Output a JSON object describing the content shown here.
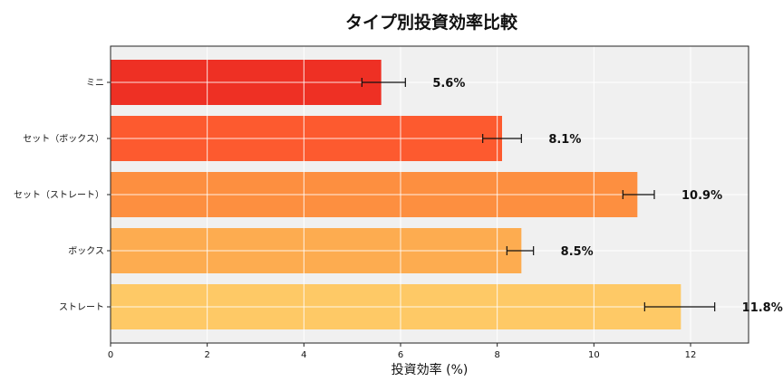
{
  "chart_data": {
    "type": "bar",
    "orientation": "horizontal",
    "title": "タイプ別投資効率比較",
    "xlabel": "投資効率 (%)",
    "ylabel": "",
    "xlim": [
      0,
      13.2
    ],
    "xticks": [
      0,
      2,
      4,
      6,
      8,
      10,
      12
    ],
    "grid": true,
    "legend": "none",
    "plot_background": "#f0f0f0",
    "categories": [
      "ミニ",
      "セット（ボックス）",
      "セット（ストレート）",
      "ボックス",
      "ストレート"
    ],
    "values": [
      5.6,
      8.1,
      10.9,
      8.5,
      11.8
    ],
    "value_labels": [
      "5.6%",
      "8.1%",
      "10.9%",
      "8.5%",
      "11.8%"
    ],
    "error_low": [
      5.2,
      7.7,
      10.6,
      8.2,
      11.05
    ],
    "error_high": [
      6.1,
      8.5,
      11.25,
      8.75,
      12.5
    ],
    "colors": [
      "#ee3024",
      "#fd5a2f",
      "#fd8f40",
      "#fdac50",
      "#fec966"
    ]
  }
}
